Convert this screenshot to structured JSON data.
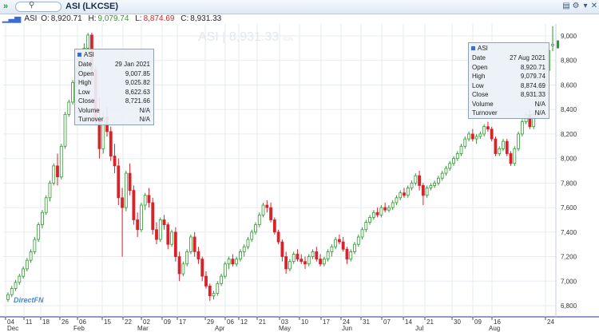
{
  "toolbar": {
    "title": "ASI (LKCSE)"
  },
  "ohlc": {
    "symbol": "ASI",
    "open_label": "O:",
    "open": "8,920.71",
    "high_label": "H:",
    "high": "9,079.74",
    "low_label": "L:",
    "low": "8,874.69",
    "close_label": "C:",
    "close": "8,931.33"
  },
  "watermark": {
    "text": "ASI | 8,931.33",
    "suffix": "SDN"
  },
  "logo": "DirectFN",
  "tooltips": [
    {
      "symbol": "ASI",
      "rows": [
        [
          "Date",
          "29 Jan 2021"
        ],
        [
          "Open",
          "9,007.85"
        ],
        [
          "High",
          "9,025.82"
        ],
        [
          "Low",
          "8,622.63"
        ],
        [
          "Close",
          "8,721.66"
        ],
        [
          "Volume",
          "N/A"
        ],
        [
          "Turnover",
          "N/A"
        ]
      ]
    },
    {
      "symbol": "ASI",
      "rows": [
        [
          "Date",
          "27 Aug 2021"
        ],
        [
          "Open",
          "8,920.71"
        ],
        [
          "High",
          "9,079.74"
        ],
        [
          "Low",
          "8,874.69"
        ],
        [
          "Close",
          "8,931.33"
        ],
        [
          "Volume",
          "N/A"
        ],
        [
          "Turnover",
          "N/A"
        ]
      ]
    }
  ],
  "colors": {
    "up": "#2e9b2e",
    "down": "#d8232a",
    "grid": "#e6ebf1",
    "axis": "#1a3a8a"
  },
  "chart_data": {
    "type": "candlestick",
    "ylim": [
      6800,
      9000
    ],
    "y_ticks": [
      "6,800",
      "7,000",
      "7,200",
      "7,400",
      "7,600",
      "7,800",
      "8,000",
      "8,200",
      "8,400",
      "8,600",
      "8,800",
      "9,000"
    ],
    "x_day_ticks": [
      "04",
      "11",
      "18",
      "26",
      "06",
      "15",
      "22",
      "02",
      "09",
      "17",
      "29",
      "06",
      "12",
      "21",
      "03",
      "10",
      "17",
      "24",
      "31",
      "07",
      "14",
      "21",
      "30",
      "09",
      "16",
      "24"
    ],
    "x_month_labels": [
      "Dec",
      "Feb",
      "Mar",
      "Apr",
      "May",
      "Jun",
      "Jul",
      "Aug"
    ],
    "ohlc": [
      [
        6850,
        6910,
        6830,
        6890
      ],
      [
        6890,
        6960,
        6870,
        6940
      ],
      [
        6940,
        7010,
        6920,
        6990
      ],
      [
        6990,
        7060,
        6970,
        7040
      ],
      [
        7040,
        7120,
        7020,
        7100
      ],
      [
        7100,
        7190,
        7080,
        7170
      ],
      [
        7170,
        7260,
        7150,
        7240
      ],
      [
        7240,
        7360,
        7220,
        7340
      ],
      [
        7340,
        7480,
        7320,
        7460
      ],
      [
        7460,
        7580,
        7430,
        7560
      ],
      [
        7560,
        7700,
        7540,
        7680
      ],
      [
        7680,
        7820,
        7650,
        7800
      ],
      [
        7800,
        7960,
        7780,
        7940
      ],
      [
        7940,
        8040,
        7780,
        7850
      ],
      [
        7850,
        8120,
        7830,
        8100
      ],
      [
        8100,
        8380,
        8080,
        8360
      ],
      [
        8360,
        8480,
        8340,
        8460
      ],
      [
        8460,
        8640,
        8440,
        8620
      ],
      [
        8620,
        8740,
        8580,
        8710
      ],
      [
        8710,
        8840,
        8690,
        8820
      ],
      [
        8820,
        8940,
        8780,
        8900
      ],
      [
        8900,
        9025,
        8860,
        9007
      ],
      [
        9007,
        9025,
        8622,
        8721
      ],
      [
        8721,
        8760,
        8280,
        8320
      ],
      [
        8320,
        8500,
        8000,
        8080
      ],
      [
        8080,
        8380,
        8040,
        8340
      ],
      [
        8340,
        8420,
        8180,
        8220
      ],
      [
        8220,
        8260,
        7980,
        8020
      ],
      [
        8020,
        8120,
        7880,
        7940
      ],
      [
        7940,
        8000,
        7620,
        7680
      ],
      [
        7680,
        7760,
        7200,
        7600
      ],
      [
        7600,
        7900,
        7570,
        7880
      ],
      [
        7880,
        7960,
        7700,
        7740
      ],
      [
        7740,
        7780,
        7460,
        7500
      ],
      [
        7500,
        7560,
        7360,
        7420
      ],
      [
        7420,
        7640,
        7400,
        7620
      ],
      [
        7620,
        7720,
        7580,
        7700
      ],
      [
        7700,
        7760,
        7600,
        7640
      ],
      [
        7640,
        7680,
        7380,
        7420
      ],
      [
        7420,
        7480,
        7300,
        7340
      ],
      [
        7340,
        7520,
        7320,
        7500
      ],
      [
        7500,
        7540,
        7420,
        7460
      ],
      [
        7460,
        7480,
        7260,
        7300
      ],
      [
        7300,
        7420,
        7280,
        7400
      ],
      [
        7400,
        7440,
        7160,
        7200
      ],
      [
        7200,
        7240,
        7000,
        7060
      ],
      [
        7060,
        7160,
        7040,
        7140
      ],
      [
        7140,
        7260,
        7120,
        7240
      ],
      [
        7240,
        7380,
        7220,
        7360
      ],
      [
        7360,
        7400,
        7200,
        7240
      ],
      [
        7240,
        7280,
        7140,
        7180
      ],
      [
        7180,
        7200,
        7000,
        7040
      ],
      [
        7040,
        7080,
        6940,
        6960
      ],
      [
        6960,
        6980,
        6840,
        6880
      ],
      [
        6880,
        6920,
        6850,
        6900
      ],
      [
        6900,
        7000,
        6880,
        6980
      ],
      [
        6980,
        7060,
        6960,
        7040
      ],
      [
        7040,
        7160,
        7020,
        7140
      ],
      [
        7140,
        7200,
        7100,
        7180
      ],
      [
        7180,
        7220,
        7120,
        7140
      ],
      [
        7140,
        7200,
        7120,
        7180
      ],
      [
        7180,
        7260,
        7160,
        7240
      ],
      [
        7240,
        7300,
        7200,
        7280
      ],
      [
        7280,
        7360,
        7260,
        7340
      ],
      [
        7340,
        7420,
        7320,
        7400
      ],
      [
        7400,
        7480,
        7380,
        7460
      ],
      [
        7460,
        7560,
        7440,
        7540
      ],
      [
        7540,
        7640,
        7520,
        7620
      ],
      [
        7620,
        7660,
        7560,
        7600
      ],
      [
        7600,
        7640,
        7480,
        7500
      ],
      [
        7500,
        7520,
        7380,
        7400
      ],
      [
        7400,
        7420,
        7300,
        7320
      ],
      [
        7320,
        7340,
        7160,
        7200
      ],
      [
        7200,
        7240,
        7060,
        7100
      ],
      [
        7100,
        7180,
        7080,
        7160
      ],
      [
        7160,
        7240,
        7140,
        7220
      ],
      [
        7220,
        7260,
        7160,
        7180
      ],
      [
        7180,
        7220,
        7140,
        7160
      ],
      [
        7160,
        7200,
        7100,
        7140
      ],
      [
        7140,
        7220,
        7120,
        7200
      ],
      [
        7200,
        7260,
        7180,
        7240
      ],
      [
        7240,
        7280,
        7160,
        7180
      ],
      [
        7180,
        7220,
        7120,
        7140
      ],
      [
        7140,
        7200,
        7120,
        7180
      ],
      [
        7180,
        7260,
        7160,
        7240
      ],
      [
        7240,
        7300,
        7200,
        7280
      ],
      [
        7280,
        7360,
        7260,
        7340
      ],
      [
        7340,
        7380,
        7300,
        7320
      ],
      [
        7320,
        7360,
        7240,
        7260
      ],
      [
        7260,
        7280,
        7140,
        7180
      ],
      [
        7180,
        7260,
        7160,
        7240
      ],
      [
        7240,
        7320,
        7220,
        7300
      ],
      [
        7300,
        7380,
        7280,
        7360
      ],
      [
        7360,
        7440,
        7340,
        7420
      ],
      [
        7420,
        7500,
        7400,
        7480
      ],
      [
        7480,
        7540,
        7460,
        7520
      ],
      [
        7520,
        7580,
        7500,
        7560
      ],
      [
        7560,
        7600,
        7520,
        7540
      ],
      [
        7540,
        7620,
        7520,
        7600
      ],
      [
        7600,
        7640,
        7560,
        7580
      ],
      [
        7580,
        7620,
        7560,
        7600
      ],
      [
        7600,
        7660,
        7580,
        7640
      ],
      [
        7640,
        7700,
        7620,
        7680
      ],
      [
        7680,
        7740,
        7660,
        7720
      ],
      [
        7720,
        7760,
        7680,
        7700
      ],
      [
        7700,
        7780,
        7680,
        7760
      ],
      [
        7760,
        7820,
        7740,
        7800
      ],
      [
        7800,
        7880,
        7780,
        7860
      ],
      [
        7860,
        7900,
        7740,
        7780
      ],
      [
        7780,
        7800,
        7620,
        7700
      ],
      [
        7700,
        7780,
        7680,
        7760
      ],
      [
        7760,
        7800,
        7740,
        7780
      ],
      [
        7780,
        7820,
        7760,
        7800
      ],
      [
        7800,
        7860,
        7780,
        7840
      ],
      [
        7840,
        7900,
        7820,
        7880
      ],
      [
        7880,
        7940,
        7860,
        7920
      ],
      [
        7920,
        7980,
        7900,
        7960
      ],
      [
        7960,
        8020,
        7940,
        8000
      ],
      [
        8000,
        8060,
        7980,
        8040
      ],
      [
        8040,
        8120,
        8020,
        8100
      ],
      [
        8100,
        8180,
        8080,
        8160
      ],
      [
        8160,
        8220,
        8140,
        8200
      ],
      [
        8200,
        8240,
        8140,
        8160
      ],
      [
        8160,
        8200,
        8120,
        8180
      ],
      [
        8180,
        8220,
        8160,
        8200
      ],
      [
        8200,
        8280,
        8180,
        8260
      ],
      [
        8260,
        8300,
        8220,
        8240
      ],
      [
        8240,
        8260,
        8140,
        8160
      ],
      [
        8160,
        8180,
        8020,
        8040
      ],
      [
        8040,
        8100,
        8020,
        8080
      ],
      [
        8080,
        8160,
        8060,
        8140
      ],
      [
        8140,
        8160,
        8020,
        8040
      ],
      [
        8040,
        8060,
        7940,
        7960
      ],
      [
        7960,
        8100,
        7940,
        8080
      ],
      [
        8080,
        8220,
        8060,
        8200
      ],
      [
        8200,
        8320,
        8180,
        8300
      ],
      [
        8300,
        8380,
        8280,
        8360
      ],
      [
        8360,
        8400,
        8240,
        8260
      ],
      [
        8260,
        8380,
        8240,
        8360
      ],
      [
        8360,
        8560,
        8340,
        8540
      ],
      [
        8540,
        8620,
        8500,
        8580
      ],
      [
        8580,
        8740,
        8560,
        8720
      ],
      [
        8720,
        8900,
        8700,
        8880
      ],
      [
        8920,
        9080,
        8875,
        8931
      ]
    ]
  }
}
